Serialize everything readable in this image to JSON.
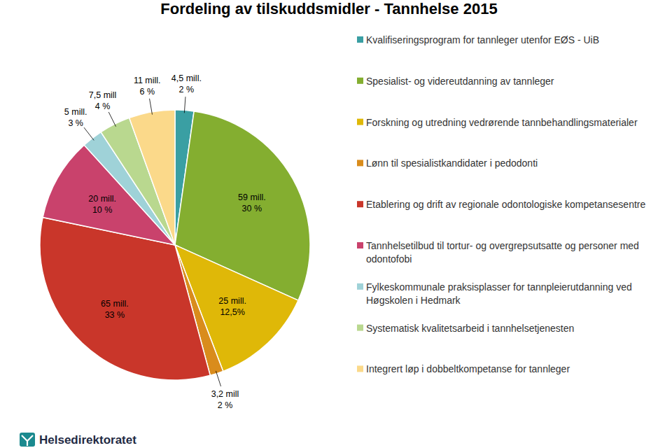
{
  "chart_data": {
    "type": "pie",
    "title": "Fordeling av tilskuddsmidler - Tannhelse 2015",
    "categories": [
      "Kvalifiseringsprogram for tannleger utenfor EØS - UiB",
      "Spesialist- og videreutdanning av tannleger",
      "Forskning og utredning vedrørende tannbehandlingsmaterialer",
      "Lønn til spesialistkandidater i pedodonti",
      "Etablering og drift av regionale odontologiske kompetansesentre",
      "Tannhelsetilbud til tortur- og overgrepsutsatte og personer med odontofobi",
      "Fylkeskommunale praksisplasser for tannpleierutdanning ved Høgskolen i Hedmark",
      "Systematisk kvalitetsarbeid i tannhelsetjenesten",
      "Integrert løp i dobbeltkompetanse for tannleger"
    ],
    "values": [
      4.5,
      59,
      25,
      3.2,
      65,
      20,
      5,
      7.5,
      11
    ],
    "value_labels": [
      "4,5 mill.",
      "59 mill.",
      "25 mill.",
      "3,2 mill",
      "65 mill.",
      "20 mill.",
      "5 mill.",
      "7,5 mill",
      "11 mill."
    ],
    "percentages": [
      2,
      30,
      12.5,
      2,
      33,
      10,
      3,
      4,
      6
    ],
    "percentage_labels": [
      "2 %",
      "30 %",
      "12,5%",
      "2 %",
      "33 %",
      "10 %",
      "3 %",
      "4 %",
      "6 %"
    ],
    "colors": [
      "#3a9fa3",
      "#84ae30",
      "#dfb808",
      "#d98c1c",
      "#c9362a",
      "#c9426c",
      "#9fd2d8",
      "#b9d88f",
      "#fbd98a"
    ],
    "legend": "right",
    "data_labels": true
  },
  "logo": "Helsedirektoratet"
}
